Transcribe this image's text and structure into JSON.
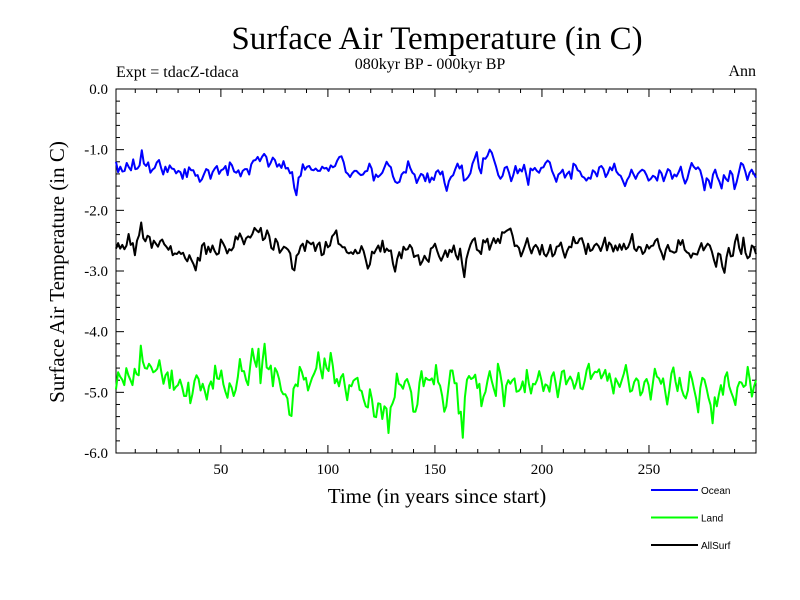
{
  "chart_data": {
    "type": "line",
    "title": "Surface Air Temperature (in C)",
    "subtitle": "080kyr BP - 000kyr BP",
    "expt_label": "Expt = tdacZ-tdaca",
    "season_label": "Ann",
    "xlabel": "Time (in years since start)",
    "ylabel": "Surface Air Temperature (in C)",
    "xlim": [
      1,
      300
    ],
    "ylim": [
      -6.0,
      0.0
    ],
    "x_ticks": [
      50,
      100,
      150,
      200,
      250
    ],
    "x_tick_labels": [
      "50",
      "100",
      "150",
      "200",
      "250"
    ],
    "y_ticks": [
      0.0,
      -1.0,
      -2.0,
      -3.0,
      -4.0,
      -5.0,
      -6.0
    ],
    "y_tick_labels": [
      "0.0",
      "-1.0",
      "-2.0",
      "-3.0",
      "-4.0",
      "-5.0",
      "-6.0"
    ],
    "legend_position": "below-right",
    "series": [
      {
        "name": "Ocean",
        "color": "#0000ff",
        "mean": -1.33,
        "values": [
          -1.2,
          -1.37,
          -1.28,
          -1.36,
          -1.35,
          -1.22,
          -1.29,
          -1.34,
          -1.16,
          -1.32,
          -1.31,
          -1.26,
          -1.01,
          -1.23,
          -1.27,
          -1.21,
          -1.38,
          -1.33,
          -1.3,
          -1.21,
          -1.17,
          -1.3,
          -1.41,
          -1.28,
          -1.37,
          -1.26,
          -1.31,
          -1.32,
          -1.39,
          -1.35,
          -1.37,
          -1.48,
          -1.32,
          -1.45,
          -1.29,
          -1.34,
          -1.34,
          -1.43,
          -1.42,
          -1.53,
          -1.49,
          -1.4,
          -1.32,
          -1.34,
          -1.48,
          -1.37,
          -1.31,
          -1.27,
          -1.4,
          -1.34,
          -1.32,
          -1.27,
          -1.42,
          -1.21,
          -1.26,
          -1.36,
          -1.38,
          -1.34,
          -1.44,
          -1.35,
          -1.32,
          -1.32,
          -1.41,
          -1.24,
          -1.18,
          -1.17,
          -1.12,
          -1.19,
          -1.12,
          -1.07,
          -1.12,
          -1.28,
          -1.22,
          -1.13,
          -1.17,
          -1.28,
          -1.24,
          -1.3,
          -1.19,
          -1.31,
          -1.3,
          -1.39,
          -1.37,
          -1.63,
          -1.75,
          -1.46,
          -1.43,
          -1.24,
          -1.33,
          -1.28,
          -1.27,
          -1.33,
          -1.34,
          -1.31,
          -1.35,
          -1.35,
          -1.28,
          -1.31,
          -1.3,
          -1.35,
          -1.26,
          -1.29,
          -1.27,
          -1.18,
          -1.12,
          -1.11,
          -1.21,
          -1.37,
          -1.4,
          -1.45,
          -1.39,
          -1.35,
          -1.35,
          -1.39,
          -1.42,
          -1.41,
          -1.36,
          -1.35,
          -1.23,
          -1.31,
          -1.51,
          -1.41,
          -1.45,
          -1.42,
          -1.38,
          -1.29,
          -1.2,
          -1.26,
          -1.29,
          -1.44,
          -1.53,
          -1.55,
          -1.53,
          -1.41,
          -1.37,
          -1.38,
          -1.19,
          -1.3,
          -1.38,
          -1.41,
          -1.55,
          -1.47,
          -1.4,
          -1.42,
          -1.52,
          -1.39,
          -1.54,
          -1.46,
          -1.5,
          -1.37,
          -1.34,
          -1.41,
          -1.36,
          -1.55,
          -1.68,
          -1.52,
          -1.45,
          -1.42,
          -1.32,
          -1.23,
          -1.31,
          -1.26,
          -1.51,
          -1.49,
          -1.45,
          -1.39,
          -1.23,
          -1.14,
          -1.04,
          -1.3,
          -1.39,
          -1.14,
          -1.15,
          -1.1,
          -1.0,
          -1.05,
          -1.17,
          -1.28,
          -1.42,
          -1.48,
          -1.43,
          -1.3,
          -1.28,
          -1.38,
          -1.52,
          -1.42,
          -1.27,
          -1.39,
          -1.32,
          -1.36,
          -1.25,
          -1.41,
          -1.58,
          -1.31,
          -1.34,
          -1.3,
          -1.35,
          -1.38,
          -1.3,
          -1.29,
          -1.22,
          -1.18,
          -1.21,
          -1.35,
          -1.43,
          -1.53,
          -1.41,
          -1.38,
          -1.33,
          -1.46,
          -1.4,
          -1.36,
          -1.48,
          -1.23,
          -1.26,
          -1.34,
          -1.36,
          -1.44,
          -1.46,
          -1.51,
          -1.46,
          -1.48,
          -1.34,
          -1.37,
          -1.44,
          -1.29,
          -1.27,
          -1.32,
          -1.45,
          -1.39,
          -1.29,
          -1.34,
          -1.23,
          -1.36,
          -1.41,
          -1.43,
          -1.51,
          -1.6,
          -1.5,
          -1.44,
          -1.33,
          -1.41,
          -1.48,
          -1.4,
          -1.36,
          -1.33,
          -1.35,
          -1.42,
          -1.51,
          -1.48,
          -1.43,
          -1.45,
          -1.51,
          -1.34,
          -1.39,
          -1.52,
          -1.42,
          -1.32,
          -1.35,
          -1.48,
          -1.41,
          -1.44,
          -1.37,
          -1.28,
          -1.45,
          -1.56,
          -1.48,
          -1.34,
          -1.22,
          -1.28,
          -1.32,
          -1.29,
          -1.34,
          -1.47,
          -1.67,
          -1.47,
          -1.51,
          -1.63,
          -1.41,
          -1.33,
          -1.45,
          -1.53,
          -1.64,
          -1.42,
          -1.48,
          -1.52,
          -1.35,
          -1.41,
          -1.65,
          -1.53,
          -1.38,
          -1.22,
          -1.25,
          -1.36,
          -1.5,
          -1.38,
          -1.33,
          -1.4,
          -1.46
        ]
      },
      {
        "name": "Land",
        "color": "#00ff00",
        "mean": -4.85,
        "values": [
          -4.95,
          -4.67,
          -4.74,
          -4.79,
          -4.88,
          -4.6,
          -4.72,
          -4.8,
          -4.88,
          -4.61,
          -4.7,
          -4.72,
          -4.23,
          -4.49,
          -4.6,
          -4.61,
          -4.53,
          -4.58,
          -4.67,
          -4.65,
          -4.61,
          -4.47,
          -4.67,
          -4.86,
          -4.72,
          -4.67,
          -4.93,
          -4.64,
          -4.96,
          -4.91,
          -4.88,
          -4.79,
          -4.91,
          -5.06,
          -5.06,
          -4.84,
          -5.18,
          -5.03,
          -4.81,
          -4.72,
          -4.78,
          -4.97,
          -4.86,
          -4.98,
          -5.12,
          -4.9,
          -4.82,
          -4.94,
          -4.56,
          -4.77,
          -4.78,
          -4.64,
          -4.87,
          -4.99,
          -5.09,
          -4.85,
          -4.92,
          -5.06,
          -4.96,
          -4.75,
          -4.45,
          -4.65,
          -4.65,
          -4.8,
          -4.88,
          -4.57,
          -4.28,
          -4.46,
          -4.58,
          -4.28,
          -4.85,
          -4.47,
          -4.2,
          -4.59,
          -4.62,
          -4.56,
          -4.9,
          -4.6,
          -4.66,
          -4.78,
          -4.97,
          -5.03,
          -5.03,
          -5.1,
          -5.37,
          -5.39,
          -4.94,
          -4.87,
          -4.9,
          -4.58,
          -4.66,
          -4.79,
          -4.76,
          -4.97,
          -4.86,
          -4.76,
          -4.69,
          -4.6,
          -4.34,
          -4.6,
          -4.77,
          -4.44,
          -4.6,
          -4.65,
          -4.35,
          -4.56,
          -4.85,
          -4.78,
          -4.9,
          -4.75,
          -4.7,
          -4.93,
          -5.13,
          -4.88,
          -4.9,
          -4.81,
          -4.78,
          -4.76,
          -4.96,
          -4.98,
          -5.12,
          -5.23,
          -5.25,
          -4.95,
          -5.12,
          -5.4,
          -5.41,
          -5.18,
          -5.19,
          -5.44,
          -5.23,
          -5.27,
          -5.67,
          -5.25,
          -5.18,
          -5.08,
          -4.69,
          -4.86,
          -4.88,
          -4.94,
          -4.82,
          -4.78,
          -4.88,
          -5.0,
          -5.32,
          -5.32,
          -5.2,
          -4.84,
          -4.65,
          -4.9,
          -4.76,
          -4.79,
          -4.8,
          -4.77,
          -4.87,
          -4.55,
          -4.83,
          -4.89,
          -5.06,
          -5.32,
          -5.23,
          -4.93,
          -4.64,
          -4.64,
          -4.85,
          -4.85,
          -5.35,
          -5.32,
          -5.75,
          -5.08,
          -4.79,
          -4.73,
          -4.78,
          -4.76,
          -4.71,
          -4.93,
          -4.86,
          -5.23,
          -5.07,
          -4.99,
          -4.8,
          -4.65,
          -4.81,
          -4.94,
          -5.06,
          -4.53,
          -4.67,
          -4.88,
          -5.23,
          -4.89,
          -4.8,
          -4.86,
          -4.8,
          -4.77,
          -4.99,
          -4.98,
          -4.94,
          -4.82,
          -5.0,
          -4.63,
          -4.86,
          -5.02,
          -4.86,
          -4.87,
          -4.79,
          -4.65,
          -4.79,
          -4.98,
          -4.87,
          -4.89,
          -4.99,
          -4.74,
          -4.67,
          -4.85,
          -5.08,
          -4.87,
          -4.66,
          -4.64,
          -4.87,
          -4.8,
          -4.74,
          -4.81,
          -4.94,
          -4.84,
          -4.68,
          -4.93,
          -4.95,
          -4.82,
          -4.63,
          -4.53,
          -4.78,
          -4.71,
          -4.66,
          -4.67,
          -4.62,
          -4.77,
          -4.71,
          -4.63,
          -4.81,
          -4.69,
          -4.85,
          -5.02,
          -4.77,
          -4.84,
          -4.91,
          -4.8,
          -4.69,
          -4.55,
          -4.76,
          -4.99,
          -4.97,
          -4.83,
          -4.77,
          -4.81,
          -5.05,
          -4.99,
          -4.83,
          -4.78,
          -4.88,
          -5.12,
          -4.86,
          -4.61,
          -4.74,
          -4.77,
          -4.86,
          -4.77,
          -4.99,
          -5.2,
          -4.97,
          -4.69,
          -4.59,
          -4.82,
          -4.98,
          -4.76,
          -4.95,
          -5.05,
          -5.1,
          -4.97,
          -4.66,
          -4.78,
          -4.95,
          -5.1,
          -5.33,
          -4.93,
          -4.76,
          -4.79,
          -4.93,
          -5.09,
          -5.21,
          -5.51,
          -5.08,
          -5.23,
          -5.04,
          -4.88,
          -5.04,
          -4.75,
          -4.67,
          -4.9,
          -5.0,
          -5.09,
          -5.21,
          -4.92,
          -4.83,
          -4.84,
          -4.91,
          -4.88,
          -4.58,
          -4.79,
          -5.07,
          -4.91,
          -4.8
        ]
      },
      {
        "name": "AllSurf",
        "color": "#000000",
        "mean": -2.6,
        "values": [
          -2.63,
          -2.54,
          -2.63,
          -2.57,
          -2.64,
          -2.58,
          -2.39,
          -2.57,
          -2.54,
          -2.74,
          -2.5,
          -2.41,
          -2.2,
          -2.46,
          -2.51,
          -2.42,
          -2.44,
          -2.62,
          -2.5,
          -2.55,
          -2.6,
          -2.51,
          -2.48,
          -2.56,
          -2.6,
          -2.65,
          -2.59,
          -2.74,
          -2.71,
          -2.72,
          -2.68,
          -2.72,
          -2.7,
          -2.79,
          -2.84,
          -2.74,
          -2.82,
          -2.89,
          -2.99,
          -2.78,
          -2.83,
          -2.58,
          -2.54,
          -2.72,
          -2.6,
          -2.69,
          -2.58,
          -2.67,
          -2.73,
          -2.71,
          -2.48,
          -2.54,
          -2.61,
          -2.71,
          -2.64,
          -2.66,
          -2.61,
          -2.43,
          -2.48,
          -2.38,
          -2.46,
          -2.56,
          -2.46,
          -2.43,
          -2.45,
          -2.39,
          -2.29,
          -2.33,
          -2.36,
          -2.29,
          -2.49,
          -2.46,
          -2.33,
          -2.42,
          -2.62,
          -2.65,
          -2.47,
          -2.53,
          -2.7,
          -2.65,
          -2.6,
          -2.62,
          -2.65,
          -2.71,
          -2.96,
          -2.99,
          -2.75,
          -2.71,
          -2.59,
          -2.55,
          -2.67,
          -2.5,
          -2.53,
          -2.56,
          -2.53,
          -2.67,
          -2.57,
          -2.53,
          -2.74,
          -2.72,
          -2.52,
          -2.61,
          -2.58,
          -2.43,
          -2.39,
          -2.33,
          -2.55,
          -2.57,
          -2.61,
          -2.61,
          -2.69,
          -2.71,
          -2.69,
          -2.72,
          -2.65,
          -2.71,
          -2.7,
          -2.59,
          -2.67,
          -2.81,
          -2.96,
          -2.89,
          -2.68,
          -2.71,
          -2.64,
          -2.58,
          -2.68,
          -2.5,
          -2.69,
          -2.63,
          -2.67,
          -2.66,
          -2.88,
          -3.01,
          -2.8,
          -2.69,
          -2.79,
          -2.6,
          -2.65,
          -2.64,
          -2.57,
          -2.62,
          -2.77,
          -2.75,
          -2.74,
          -2.9,
          -2.84,
          -2.75,
          -2.81,
          -2.85,
          -2.63,
          -2.61,
          -2.55,
          -2.66,
          -2.76,
          -2.83,
          -2.75,
          -2.66,
          -2.77,
          -2.65,
          -2.69,
          -2.58,
          -2.74,
          -2.81,
          -2.63,
          -2.89,
          -3.1,
          -2.8,
          -2.67,
          -2.56,
          -2.49,
          -2.46,
          -2.65,
          -2.67,
          -2.72,
          -2.49,
          -2.53,
          -2.47,
          -2.65,
          -2.55,
          -2.46,
          -2.54,
          -2.47,
          -2.54,
          -2.36,
          -2.37,
          -2.34,
          -2.32,
          -2.3,
          -2.42,
          -2.59,
          -2.58,
          -2.62,
          -2.76,
          -2.67,
          -2.57,
          -2.46,
          -2.61,
          -2.71,
          -2.61,
          -2.57,
          -2.62,
          -2.73,
          -2.57,
          -2.72,
          -2.76,
          -2.69,
          -2.57,
          -2.76,
          -2.72,
          -2.6,
          -2.59,
          -2.53,
          -2.67,
          -2.78,
          -2.67,
          -2.6,
          -2.61,
          -2.44,
          -2.54,
          -2.54,
          -2.47,
          -2.46,
          -2.57,
          -2.72,
          -2.55,
          -2.67,
          -2.65,
          -2.58,
          -2.55,
          -2.59,
          -2.67,
          -2.57,
          -2.45,
          -2.66,
          -2.53,
          -2.57,
          -2.68,
          -2.58,
          -2.66,
          -2.56,
          -2.65,
          -2.55,
          -2.64,
          -2.61,
          -2.52,
          -2.39,
          -2.63,
          -2.67,
          -2.6,
          -2.61,
          -2.72,
          -2.68,
          -2.57,
          -2.63,
          -2.59,
          -2.58,
          -2.5,
          -2.47,
          -2.62,
          -2.7,
          -2.81,
          -2.65,
          -2.57,
          -2.67,
          -2.68,
          -2.7,
          -2.68,
          -2.49,
          -2.57,
          -2.49,
          -2.65,
          -2.69,
          -2.71,
          -2.78,
          -2.71,
          -2.72,
          -2.73,
          -2.63,
          -2.54,
          -2.66,
          -2.6,
          -2.55,
          -2.58,
          -2.68,
          -2.82,
          -2.93,
          -2.71,
          -2.73,
          -2.93,
          -3.03,
          -2.77,
          -2.62,
          -2.76,
          -2.75,
          -2.52,
          -2.4,
          -2.62,
          -2.72,
          -2.45,
          -2.7,
          -2.79,
          -2.76,
          -2.58,
          -2.61,
          -2.72
        ]
      }
    ]
  }
}
